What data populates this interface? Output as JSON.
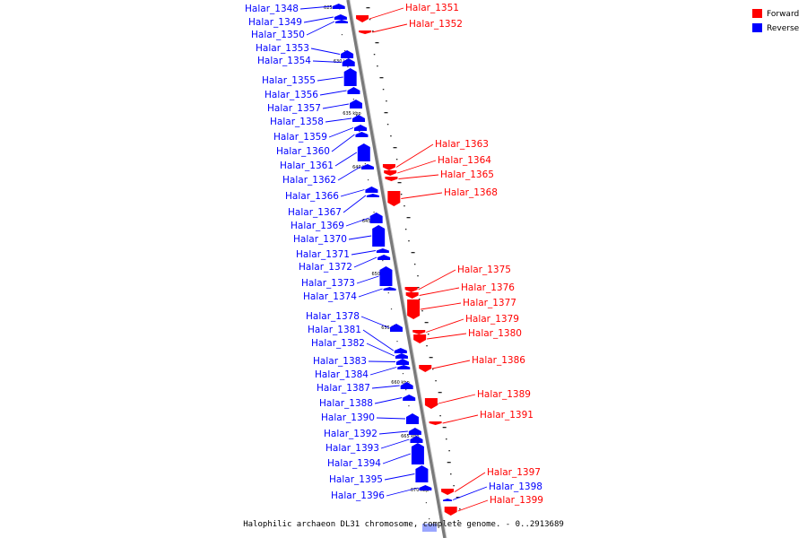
{
  "caption": "Halophilic archaeon DL31 chromosome, complete genome. - 0..2913689",
  "legend": [
    {
      "label": "Forward",
      "color": "#ff0000"
    },
    {
      "label": "Reverse",
      "color": "#0000ff"
    }
  ],
  "colors": {
    "forward": "#ff0000",
    "reverse": "#0000ff",
    "axis": "#888888"
  },
  "ticks": [
    "625 kbp",
    "630 kbp",
    "635 kbp",
    "640 kbp",
    "645 kbp",
    "650 kbp",
    "655 kbp",
    "660 kbp",
    "665 kbp",
    "670 kbp"
  ],
  "genes": [
    {
      "name": "Halar_1348",
      "strand": "reverse"
    },
    {
      "name": "Halar_1349",
      "strand": "reverse"
    },
    {
      "name": "Halar_1350",
      "strand": "reverse"
    },
    {
      "name": "Halar_1351",
      "strand": "forward"
    },
    {
      "name": "Halar_1352",
      "strand": "forward"
    },
    {
      "name": "Halar_1353",
      "strand": "reverse"
    },
    {
      "name": "Halar_1354",
      "strand": "reverse"
    },
    {
      "name": "Halar_1355",
      "strand": "reverse"
    },
    {
      "name": "Halar_1356",
      "strand": "reverse"
    },
    {
      "name": "Halar_1357",
      "strand": "reverse"
    },
    {
      "name": "Halar_1358",
      "strand": "reverse"
    },
    {
      "name": "Halar_1359",
      "strand": "reverse"
    },
    {
      "name": "Halar_1360",
      "strand": "reverse"
    },
    {
      "name": "Halar_1361",
      "strand": "reverse"
    },
    {
      "name": "Halar_1362",
      "strand": "reverse"
    },
    {
      "name": "Halar_1363",
      "strand": "forward"
    },
    {
      "name": "Halar_1364",
      "strand": "forward"
    },
    {
      "name": "Halar_1365",
      "strand": "forward"
    },
    {
      "name": "Halar_1366",
      "strand": "reverse"
    },
    {
      "name": "Halar_1367",
      "strand": "reverse"
    },
    {
      "name": "Halar_1368",
      "strand": "forward"
    },
    {
      "name": "Halar_1369",
      "strand": "reverse"
    },
    {
      "name": "Halar_1370",
      "strand": "reverse"
    },
    {
      "name": "Halar_1371",
      "strand": "reverse"
    },
    {
      "name": "Halar_1372",
      "strand": "reverse"
    },
    {
      "name": "Halar_1373",
      "strand": "reverse"
    },
    {
      "name": "Halar_1374",
      "strand": "reverse"
    },
    {
      "name": "Halar_1375",
      "strand": "forward"
    },
    {
      "name": "Halar_1376",
      "strand": "forward"
    },
    {
      "name": "Halar_1377",
      "strand": "forward"
    },
    {
      "name": "Halar_1378",
      "strand": "reverse"
    },
    {
      "name": "Halar_1379",
      "strand": "forward"
    },
    {
      "name": "Halar_1380",
      "strand": "forward"
    },
    {
      "name": "Halar_1381",
      "strand": "reverse"
    },
    {
      "name": "Halar_1382",
      "strand": "reverse"
    },
    {
      "name": "Halar_1383",
      "strand": "reverse"
    },
    {
      "name": "Halar_1384",
      "strand": "reverse"
    },
    {
      "name": "Halar_1386",
      "strand": "forward"
    },
    {
      "name": "Halar_1387",
      "strand": "reverse"
    },
    {
      "name": "Halar_1388",
      "strand": "reverse"
    },
    {
      "name": "Halar_1389",
      "strand": "forward"
    },
    {
      "name": "Halar_1390",
      "strand": "reverse"
    },
    {
      "name": "Halar_1391",
      "strand": "forward"
    },
    {
      "name": "Halar_1392",
      "strand": "reverse"
    },
    {
      "name": "Halar_1393",
      "strand": "reverse"
    },
    {
      "name": "Halar_1394",
      "strand": "reverse"
    },
    {
      "name": "Halar_1395",
      "strand": "reverse"
    },
    {
      "name": "Halar_1396",
      "strand": "reverse"
    },
    {
      "name": "Halar_1397",
      "strand": "forward"
    },
    {
      "name": "Halar_1398",
      "strand": "reverse"
    },
    {
      "name": "Halar_1399",
      "strand": "forward"
    }
  ]
}
